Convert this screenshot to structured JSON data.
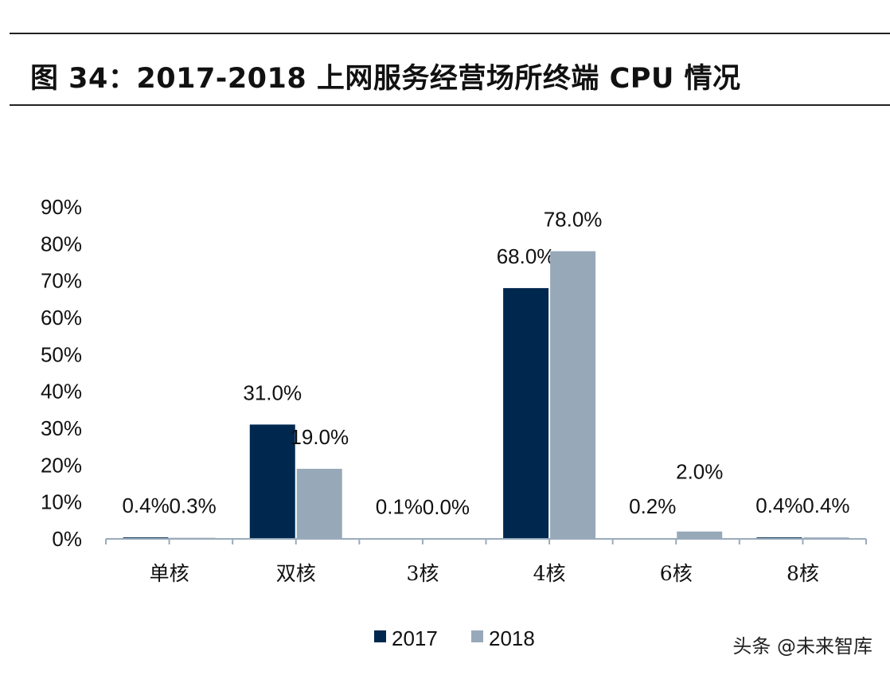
{
  "title": "图 34：2017-2018 上网服务经营场所终端 CPU 情况",
  "watermark": "头条 @未来智库",
  "chart_data": {
    "type": "bar",
    "title": "",
    "xlabel": "",
    "ylabel": "",
    "categories": [
      "单核",
      "双核",
      "3核",
      "4核",
      "6核",
      "8核"
    ],
    "series": [
      {
        "name": "2017",
        "values": [
          0.4,
          31.0,
          0.1,
          68.0,
          0.2,
          0.4
        ],
        "labels": [
          "0.4%",
          "31.0%",
          "0.1%",
          "68.0%",
          "0.2%",
          "0.4%"
        ],
        "color": "#00284f"
      },
      {
        "name": "2018",
        "values": [
          0.3,
          19.0,
          0.0,
          78.0,
          2.0,
          0.4
        ],
        "labels": [
          "0.3%",
          "19.0%",
          "0.0%",
          "78.0%",
          "2.0%",
          "0.4%"
        ],
        "color": "#97a9b9"
      }
    ],
    "ylim": [
      0,
      90
    ],
    "yticks": [
      "0%",
      "10%",
      "20%",
      "30%",
      "40%",
      "50%",
      "60%",
      "70%",
      "80%",
      "90%"
    ],
    "grid": false,
    "legend": "bottom",
    "axis_color": "#9aabbb"
  }
}
